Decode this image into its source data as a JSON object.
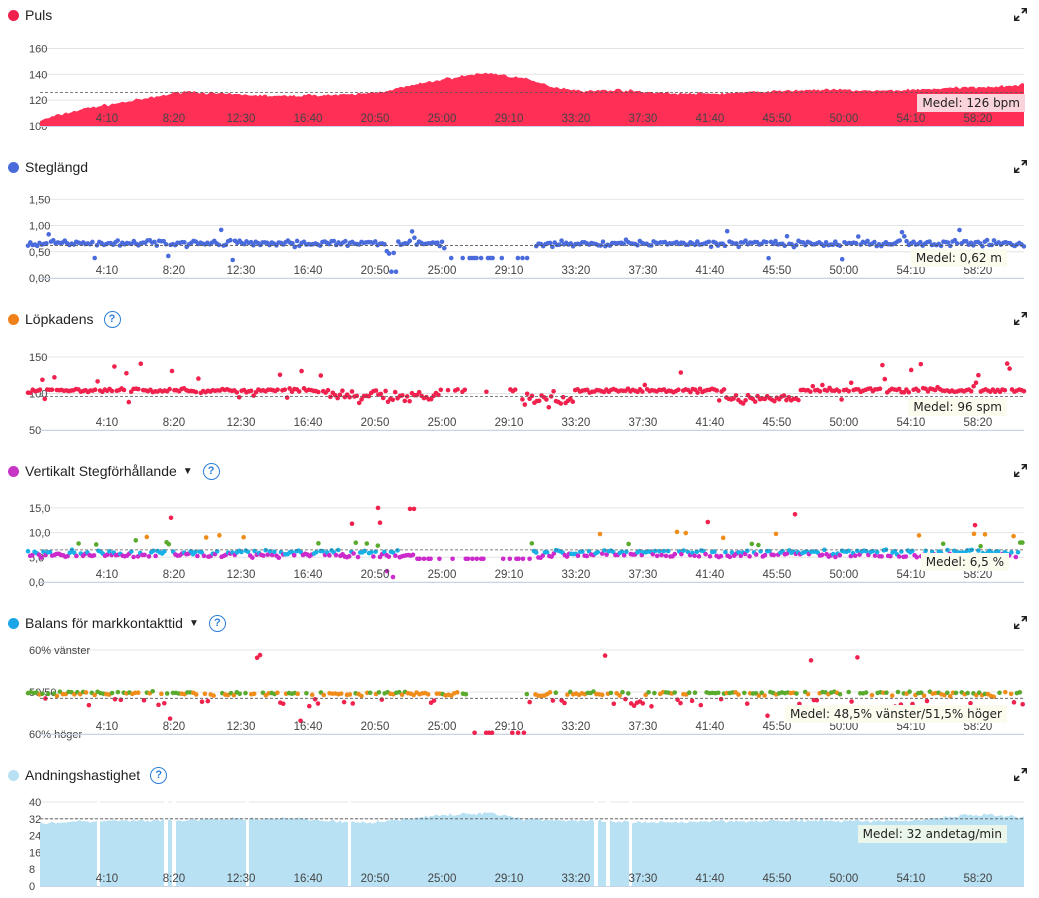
{
  "colors": {
    "hr": "#ff2f56",
    "stride": "#4a6bdc",
    "cadence": "#f0801a",
    "vratio": "#c735c5",
    "gct": "#1aa6e8",
    "resp": "#b9e1f4",
    "red": "#f0224d",
    "orange": "#f08c1a",
    "green": "#5aaa2e",
    "blue": "#18b0e8",
    "purple": "#cc2acb"
  },
  "x_ticks": [
    "4:10",
    "8:20",
    "12:30",
    "16:40",
    "20:50",
    "25:00",
    "29:10",
    "33:20",
    "37:30",
    "41:40",
    "45:50",
    "50:00",
    "54:10",
    "58:20"
  ],
  "chart_data": [
    {
      "id": "hr",
      "type": "area",
      "title": "Puls",
      "y_ticks": [
        "160",
        "140",
        "120",
        "100"
      ],
      "ylim": [
        100,
        165
      ],
      "mean_value": 126,
      "mean_label": "Medel: 126 bpm",
      "duration_min": 61.2,
      "series_profile": [
        [
          0,
          104
        ],
        [
          1,
          108
        ],
        [
          3,
          114
        ],
        [
          5,
          118
        ],
        [
          7,
          122
        ],
        [
          9,
          127
        ],
        [
          11,
          125
        ],
        [
          13,
          124
        ],
        [
          15,
          123
        ],
        [
          17,
          124
        ],
        [
          19,
          124
        ],
        [
          21,
          126
        ],
        [
          23,
          131
        ],
        [
          25,
          136
        ],
        [
          27,
          140
        ],
        [
          28,
          141
        ],
        [
          30,
          137
        ],
        [
          32,
          130
        ],
        [
          34,
          127
        ],
        [
          36,
          128
        ],
        [
          38,
          126
        ],
        [
          40,
          125
        ],
        [
          42,
          125
        ],
        [
          44,
          126
        ],
        [
          46,
          127
        ],
        [
          48,
          128
        ],
        [
          50,
          128
        ],
        [
          52,
          127
        ],
        [
          54,
          128
        ],
        [
          56,
          129
        ],
        [
          58,
          130
        ],
        [
          60,
          131
        ],
        [
          61.2,
          132
        ]
      ]
    },
    {
      "id": "stride",
      "type": "scatter",
      "title": "Steglängd",
      "y_ticks": [
        "1,50",
        "1,00",
        "0,50",
        "0,00"
      ],
      "ylim": [
        0,
        1.6
      ],
      "mean_value": 0.62,
      "mean_label": "Medel: 0,62 m",
      "duration_min": 61.2
    },
    {
      "id": "cadence",
      "type": "scatter",
      "title": "Löpkadens",
      "has_help": true,
      "y_ticks": [
        "150",
        "100",
        "50"
      ],
      "ylim": [
        50,
        165
      ],
      "mean_value": 96,
      "mean_label": "Medel: 96 spm",
      "duration_min": 61.2
    },
    {
      "id": "vratio",
      "type": "scatter",
      "title": "Vertikalt Stegförhållande",
      "has_dropdown": true,
      "has_help": true,
      "y_ticks": [
        "15,0",
        "10,0",
        "5,0",
        "0,0"
      ],
      "ylim": [
        0,
        17
      ],
      "mean_value": 6.5,
      "mean_label": "Medel: 6,5 %",
      "duration_min": 61.2
    },
    {
      "id": "gct",
      "type": "scatter",
      "title": "Balans för markkontakttid",
      "has_dropdown": true,
      "has_help": true,
      "y_ticks": [
        "60% vänster",
        "50/50",
        "60% höger"
      ],
      "ylim": [
        40,
        60
      ],
      "mean_value": 48.5,
      "mean_label": "Medel: 48,5% vänster/51,5% höger",
      "duration_min": 61.2
    },
    {
      "id": "resp",
      "type": "area",
      "title": "Andningshastighet",
      "has_help": true,
      "y_ticks": [
        "40",
        "32",
        "24",
        "16",
        "8",
        "0"
      ],
      "ylim": [
        0,
        40
      ],
      "mean_value": 32,
      "mean_label": "Medel: 32 andetag/min",
      "duration_min": 61.2,
      "series_profile": [
        [
          0,
          30
        ],
        [
          4,
          31
        ],
        [
          8,
          31
        ],
        [
          12,
          32
        ],
        [
          16,
          32
        ],
        [
          20,
          30
        ],
        [
          24,
          33
        ],
        [
          28,
          35
        ],
        [
          30,
          32
        ],
        [
          34,
          31
        ],
        [
          38,
          30
        ],
        [
          42,
          31
        ],
        [
          46,
          31
        ],
        [
          50,
          31
        ],
        [
          54,
          31
        ],
        [
          58,
          34
        ],
        [
          61.2,
          33
        ]
      ]
    }
  ]
}
